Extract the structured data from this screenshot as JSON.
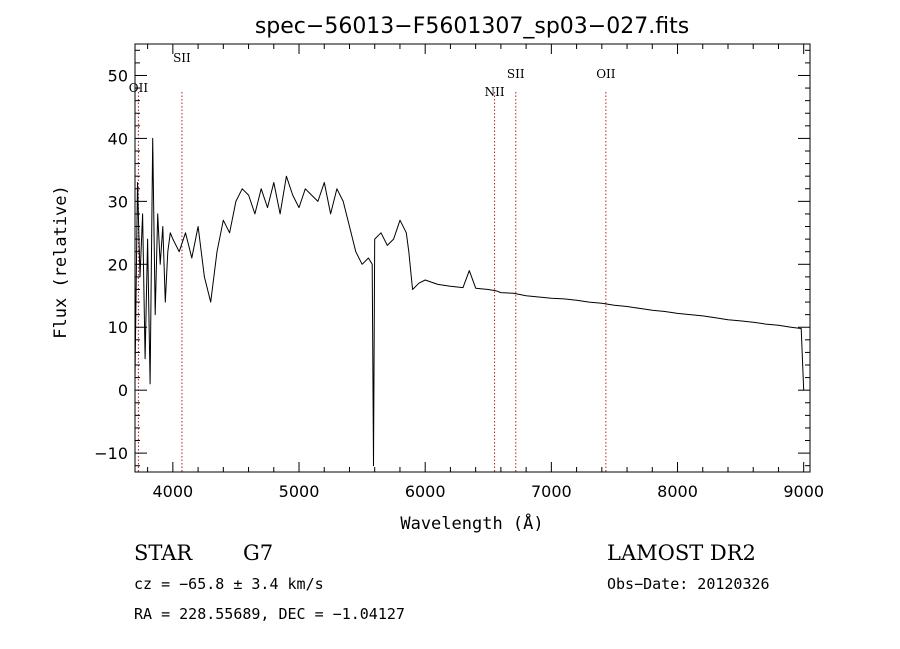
{
  "chart_data": {
    "type": "line",
    "title": "spec−56013−F5601307_sp03−027.fits",
    "xlabel": "Wavelength (Å)",
    "ylabel": "Flux (relative)",
    "xlim": [
      3700,
      9050
    ],
    "ylim": [
      -13,
      55
    ],
    "x_ticks": [
      4000,
      5000,
      6000,
      7000,
      8000,
      9000
    ],
    "y_ticks": [
      -10,
      0,
      10,
      20,
      30,
      40,
      50
    ],
    "x_tick_labels": [
      "4000",
      "5000",
      "6000",
      "7000",
      "8000",
      "9000"
    ],
    "y_tick_labels": [
      "−10",
      "0",
      "10",
      "20",
      "30",
      "40",
      "50"
    ],
    "grid": false,
    "series": [
      {
        "color": "#000000",
        "x": [
          3700,
          3720,
          3740,
          3760,
          3780,
          3800,
          3820,
          3840,
          3860,
          3880,
          3900,
          3920,
          3940,
          3960,
          3980,
          4000,
          4050,
          4100,
          4150,
          4200,
          4250,
          4300,
          4350,
          4400,
          4450,
          4500,
          4550,
          4600,
          4650,
          4700,
          4750,
          4800,
          4850,
          4900,
          4950,
          5000,
          5050,
          5100,
          5150,
          5200,
          5250,
          5300,
          5350,
          5400,
          5450,
          5500,
          5550,
          5580,
          5590,
          5600,
          5650,
          5700,
          5750,
          5800,
          5850,
          5870,
          5890,
          5900,
          5950,
          6000,
          6100,
          6200,
          6300,
          6350,
          6400,
          6500,
          6560,
          6600,
          6700,
          6800,
          6900,
          7000,
          7100,
          7200,
          7300,
          7400,
          7500,
          7600,
          7700,
          7800,
          7900,
          8000,
          8100,
          8200,
          8300,
          8400,
          8500,
          8600,
          8700,
          8800,
          8900,
          8980,
          9000
        ],
        "y": [
          2,
          33,
          18,
          28,
          5,
          24,
          1,
          40,
          12,
          28,
          20,
          26,
          14,
          22,
          25,
          24,
          22,
          25,
          21,
          26,
          18,
          14,
          22,
          27,
          25,
          30,
          32,
          31,
          28,
          32,
          29,
          33,
          28,
          34,
          31,
          29,
          32,
          31,
          30,
          33,
          28,
          32,
          30,
          26,
          22,
          20,
          21,
          20,
          -12,
          24,
          25,
          23,
          24,
          27,
          25,
          22,
          18,
          16,
          17,
          17.5,
          16.8,
          16.5,
          16.3,
          19,
          16.2,
          16,
          15.8,
          15.5,
          15.4,
          15,
          14.8,
          14.6,
          14.5,
          14.3,
          14,
          13.8,
          13.5,
          13.3,
          13,
          12.7,
          12.5,
          12.2,
          12,
          11.8,
          11.5,
          11.2,
          11,
          10.8,
          10.5,
          10.3,
          10,
          9.8,
          0
        ]
      }
    ],
    "lines": [
      {
        "label": "OII",
        "x": 3727
      },
      {
        "label": "SII",
        "x": 4072
      },
      {
        "label": "NII",
        "x": 6550
      },
      {
        "label": "SII",
        "x": 6718
      },
      {
        "label": "OII",
        "x": 7432
      }
    ]
  },
  "footer": {
    "object_class": "STAR",
    "subclass": "G7",
    "survey": "LAMOST DR2",
    "cz": "cz = −65.8 ± 3.4 km/s",
    "obs_date": "Obs−Date: 20120326",
    "radec": "RA = 228.55689, DEC =  −1.04127"
  },
  "colors": {
    "line_marker": "#b22222",
    "spectrum": "#000000",
    "axes": "#000000"
  }
}
